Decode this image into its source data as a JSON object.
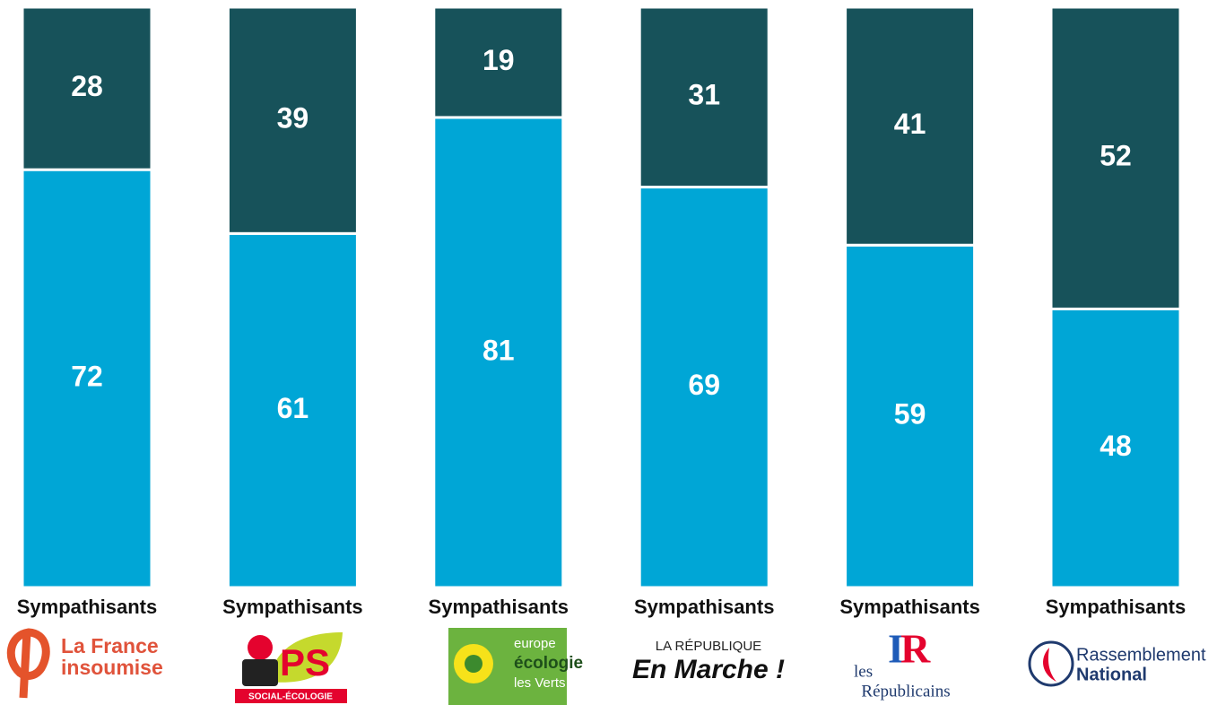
{
  "chart_data": {
    "type": "bar",
    "stacked": true,
    "categories": [
      "Sympathisants",
      "Sympathisants",
      "Sympathisants",
      "Sympathisants",
      "Sympathisants",
      "Sympathisants"
    ],
    "series": [
      {
        "color": "#00a6d6",
        "values": [
          72,
          61,
          81,
          69,
          59,
          48
        ]
      },
      {
        "color": "#17525a",
        "values": [
          28,
          39,
          19,
          31,
          41,
          52
        ]
      }
    ],
    "ylim": [
      0,
      100
    ],
    "logos": [
      [
        "La France",
        "insoumise"
      ],
      [
        "PS",
        "SOCIAL-ÉCOLOGIE"
      ],
      [
        "europe",
        "écologie",
        "les Verts"
      ],
      [
        "LA RÉPUBLIQUE",
        "En Marche !"
      ],
      [
        "les",
        "I",
        "R",
        "Républicains"
      ],
      [
        "Rassemblement",
        "National"
      ]
    ]
  }
}
